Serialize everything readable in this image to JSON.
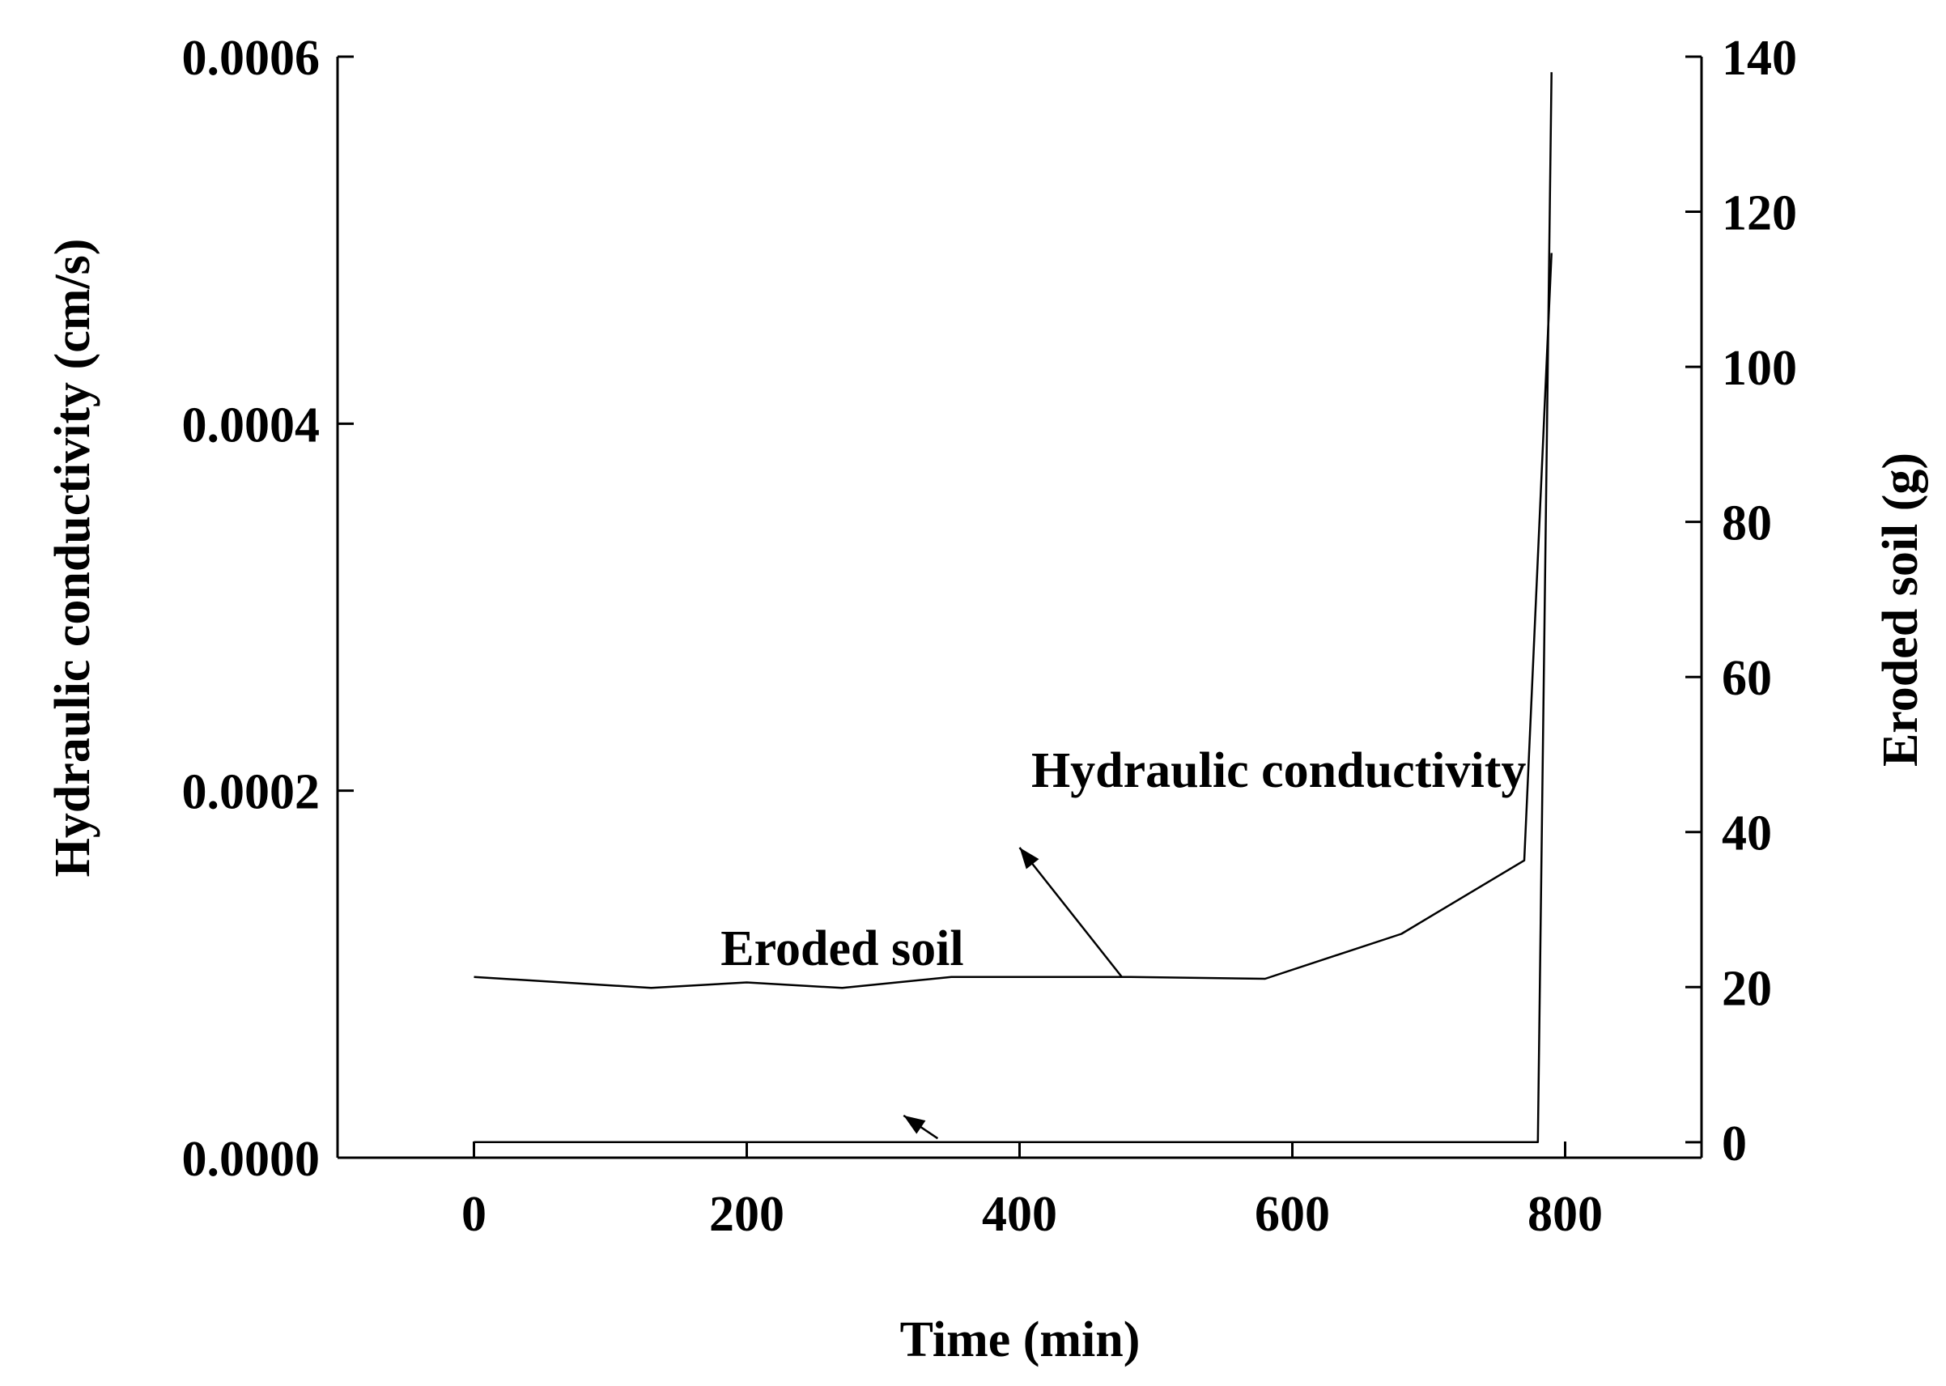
{
  "chart_data": {
    "type": "line",
    "title": "",
    "xlabel": "Time (min)",
    "ylabel_left": "Hydraulic conductivity (cm/s)",
    "ylabel_right": "Eroded soil (g)",
    "xlim": [
      -100,
      900
    ],
    "ylim_left": [
      0,
      0.0006
    ],
    "ylim_right": [
      -2,
      140
    ],
    "x_ticks": [
      0,
      200,
      400,
      600,
      800
    ],
    "x_tick_labels": [
      "0",
      "200",
      "400",
      "600",
      "800"
    ],
    "y_left_ticks": [
      0,
      0.0002,
      0.0004,
      0.0006
    ],
    "y_left_tick_labels": [
      "0.0000",
      "0.0002",
      "0.0004",
      "0.0006"
    ],
    "y_right_ticks": [
      0,
      20,
      40,
      60,
      80,
      100,
      120,
      140
    ],
    "y_right_tick_labels": [
      "0",
      "20",
      "40",
      "60",
      "80",
      "100",
      "120",
      "140"
    ],
    "grid": false,
    "series": [
      {
        "name": "Hydraulic conductivity",
        "axis": "left",
        "color": "#000000",
        "x": [
          0,
          130,
          200,
          270,
          350,
          480,
          580,
          680,
          770,
          790
        ],
        "y": [
          9.85e-05,
          9.25e-05,
          9.55e-05,
          9.25e-05,
          9.85e-05,
          9.85e-05,
          9.75e-05,
          0.000122,
          0.000162,
          0.000493
        ]
      },
      {
        "name": "Eroded soil",
        "axis": "right",
        "color": "#000000",
        "x": [
          0,
          100,
          200,
          300,
          400,
          500,
          600,
          700,
          780,
          790
        ],
        "y": [
          0,
          0,
          0,
          0,
          0,
          0,
          0,
          0,
          0,
          138
        ]
      }
    ],
    "annotations": [
      {
        "text": "Hydraulic conductivity",
        "label_anchor": [
          590,
          0.000202
        ],
        "arrow_from": [
          475,
          9.85e-05
        ],
        "arrow_to": [
          400,
          0.000169
        ]
      },
      {
        "text": "Eroded soil",
        "label_anchor": [
          270,
          0.000105
        ],
        "arrow_from": [
          340,
          1.05e-05
        ],
        "arrow_to": [
          315,
          2.3e-05
        ]
      }
    ]
  }
}
